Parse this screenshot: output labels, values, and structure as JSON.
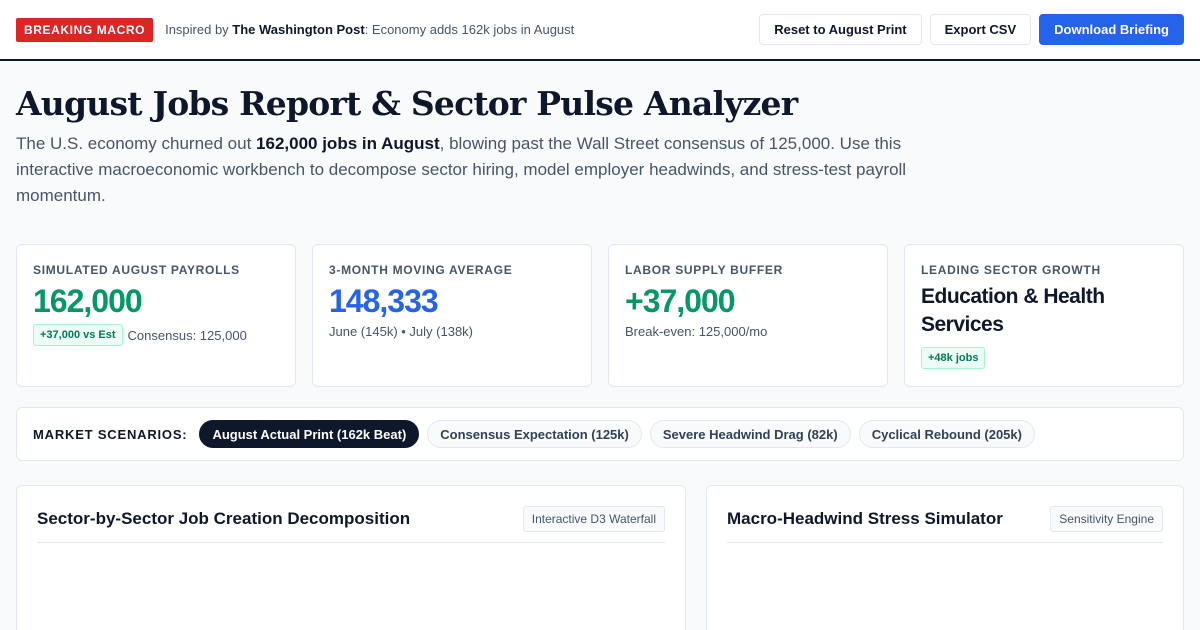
{
  "header": {
    "badge": "BREAKING MACRO",
    "inspired_prefix": "Inspired by ",
    "inspired_source": "The Washington Post",
    "inspired_suffix": ": Economy adds 162k jobs in August",
    "buttons": {
      "reset": "Reset to August Print",
      "export": "Export CSV",
      "download": "Download Briefing"
    }
  },
  "page": {
    "title": "August Jobs Report & Sector Pulse Analyzer",
    "lede_prefix": "The U.S. economy churned out ",
    "lede_bold": "162,000 jobs in August",
    "lede_suffix": ", blowing past the Wall Street consensus of 125,000. Use this interactive macroeconomic workbench to decompose sector hiring, model employer headwinds, and stress-test payroll momentum."
  },
  "kpis": [
    {
      "label": "Simulated August Payrolls",
      "value": "162,000",
      "badge": "+37,000 vs Est",
      "sub": "Consensus: 125,000"
    },
    {
      "label": "3-Month Moving Average",
      "value": "148,333",
      "sub": "June (145k) • July (138k)"
    },
    {
      "label": "Labor Supply Buffer",
      "value": "+37,000",
      "sub": "Break-even: 125,000/mo"
    },
    {
      "label": "Leading Sector Growth",
      "value": "Education & Health Services",
      "badge": "+48k jobs"
    }
  ],
  "scenarios": {
    "label": "MARKET SCENARIOS:",
    "options": [
      "August Actual Print (162k Beat)",
      "Consensus Expectation (125k)",
      "Severe Headwind Drag (82k)",
      "Cyclical Rebound (205k)"
    ],
    "selected": "August Actual Print (162k Beat)"
  },
  "panels": {
    "left": {
      "title": "Sector-by-Sector Job Creation Decomposition",
      "tag": "Interactive D3 Waterfall"
    },
    "right": {
      "title": "Macro-Headwind Stress Simulator",
      "tag": "Sensitivity Engine"
    }
  },
  "colors": {
    "breaking": "#dc2626",
    "primary": "#2563eb",
    "positive": "#059669",
    "ink": "#0f172a"
  }
}
